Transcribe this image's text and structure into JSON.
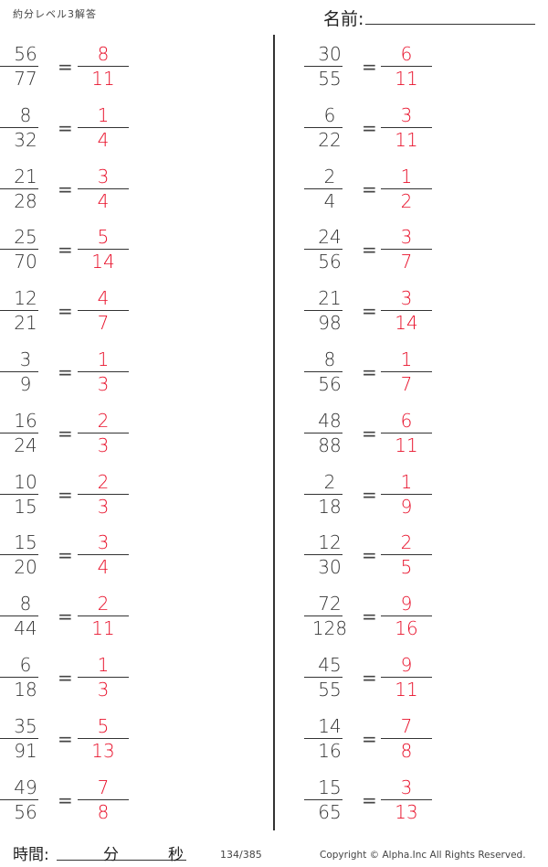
{
  "header": {
    "title": "約分レベル3解答",
    "name_label": "名前:"
  },
  "left_problems": [
    {
      "num": "56",
      "den": "77",
      "ans_num": "8",
      "ans_den": "11"
    },
    {
      "num": "8",
      "den": "32",
      "ans_num": "1",
      "ans_den": "4"
    },
    {
      "num": "21",
      "den": "28",
      "ans_num": "3",
      "ans_den": "4"
    },
    {
      "num": "25",
      "den": "70",
      "ans_num": "5",
      "ans_den": "14"
    },
    {
      "num": "12",
      "den": "21",
      "ans_num": "4",
      "ans_den": "7"
    },
    {
      "num": "3",
      "den": "9",
      "ans_num": "1",
      "ans_den": "3"
    },
    {
      "num": "16",
      "den": "24",
      "ans_num": "2",
      "ans_den": "3"
    },
    {
      "num": "10",
      "den": "15",
      "ans_num": "2",
      "ans_den": "3"
    },
    {
      "num": "15",
      "den": "20",
      "ans_num": "3",
      "ans_den": "4"
    },
    {
      "num": "8",
      "den": "44",
      "ans_num": "2",
      "ans_den": "11"
    },
    {
      "num": "6",
      "den": "18",
      "ans_num": "1",
      "ans_den": "3"
    },
    {
      "num": "35",
      "den": "91",
      "ans_num": "5",
      "ans_den": "13"
    },
    {
      "num": "49",
      "den": "56",
      "ans_num": "7",
      "ans_den": "8"
    }
  ],
  "right_problems": [
    {
      "num": "30",
      "den": "55",
      "ans_num": "6",
      "ans_den": "11"
    },
    {
      "num": "6",
      "den": "22",
      "ans_num": "3",
      "ans_den": "11"
    },
    {
      "num": "2",
      "den": "4",
      "ans_num": "1",
      "ans_den": "2"
    },
    {
      "num": "24",
      "den": "56",
      "ans_num": "3",
      "ans_den": "7"
    },
    {
      "num": "21",
      "den": "98",
      "ans_num": "3",
      "ans_den": "14"
    },
    {
      "num": "8",
      "den": "56",
      "ans_num": "1",
      "ans_den": "7"
    },
    {
      "num": "48",
      "den": "88",
      "ans_num": "6",
      "ans_den": "11"
    },
    {
      "num": "2",
      "den": "18",
      "ans_num": "1",
      "ans_den": "9"
    },
    {
      "num": "12",
      "den": "30",
      "ans_num": "2",
      "ans_den": "5"
    },
    {
      "num": "72",
      "den": "128",
      "ans_num": "9",
      "ans_den": "16"
    },
    {
      "num": "45",
      "den": "55",
      "ans_num": "9",
      "ans_den": "11"
    },
    {
      "num": "14",
      "den": "16",
      "ans_num": "7",
      "ans_den": "8"
    },
    {
      "num": "15",
      "den": "65",
      "ans_num": "3",
      "ans_den": "13"
    }
  ],
  "equals": "=",
  "answer_color": "#e8102a",
  "footer": {
    "time_label": "時間:",
    "minutes_label": "分",
    "seconds_label": "秒",
    "page": "134/385",
    "copyright": "Copyright ©  Alpha.Inc All Rights Reserved."
  }
}
